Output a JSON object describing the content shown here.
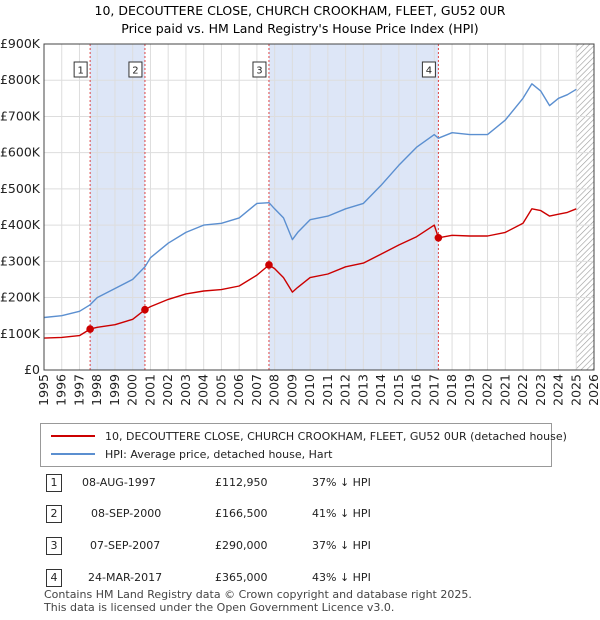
{
  "chart_data": {
    "type": "line",
    "title": "10, DECOUTTERE CLOSE, CHURCH CROOKHAM, FLEET, GU52 0UR",
    "subtitle": "Price paid vs. HM Land Registry's House Price Index (HPI)",
    "xlabel": "",
    "ylabel": "",
    "xlim": [
      1995,
      2026
    ],
    "ylim": [
      0,
      900000
    ],
    "yticks": [
      {
        "value": 0,
        "label": "£0"
      },
      {
        "value": 100000,
        "label": "£100K"
      },
      {
        "value": 200000,
        "label": "£200K"
      },
      {
        "value": 300000,
        "label": "£300K"
      },
      {
        "value": 400000,
        "label": "£400K"
      },
      {
        "value": 500000,
        "label": "£500K"
      },
      {
        "value": 600000,
        "label": "£600K"
      },
      {
        "value": 700000,
        "label": "£700K"
      },
      {
        "value": 800000,
        "label": "£800K"
      },
      {
        "value": 900000,
        "label": "£900K"
      }
    ],
    "xticks": [
      "1995",
      "1996",
      "1997",
      "1998",
      "1999",
      "2000",
      "2001",
      "2002",
      "2003",
      "2004",
      "2005",
      "2006",
      "2007",
      "2008",
      "2009",
      "2010",
      "2011",
      "2012",
      "2013",
      "2014",
      "2015",
      "2016",
      "2017",
      "2018",
      "2019",
      "2020",
      "2021",
      "2022",
      "2023",
      "2024",
      "2025",
      "2026"
    ],
    "shaded_periods": [
      [
        1997.6,
        2000.69
      ],
      [
        2007.68,
        2017.23
      ]
    ],
    "hatched_from": 2025.0,
    "series": [
      {
        "name": "10, DECOUTTERE CLOSE, CHURCH CROOKHAM, FLEET, GU52 0UR (detached house)",
        "color": "#cc0000",
        "x": [
          1995.0,
          1996.0,
          1997.0,
          1997.6,
          1998.0,
          1999.0,
          2000.0,
          2000.69,
          2001.0,
          2002.0,
          2003.0,
          2004.0,
          2005.0,
          2006.0,
          2007.0,
          2007.68,
          2008.0,
          2008.5,
          2009.0,
          2009.3,
          2010.0,
          2011.0,
          2012.0,
          2013.0,
          2014.0,
          2015.0,
          2016.0,
          2017.0,
          2017.23,
          2018.0,
          2019.0,
          2020.0,
          2021.0,
          2022.0,
          2022.5,
          2023.0,
          2023.5,
          2024.0,
          2024.5,
          2025.0
        ],
        "values": [
          88000,
          90000,
          95000,
          112950,
          118000,
          125000,
          140000,
          166500,
          175000,
          195000,
          210000,
          218000,
          222000,
          232000,
          262000,
          290000,
          280000,
          255000,
          215000,
          228000,
          255000,
          265000,
          285000,
          295000,
          320000,
          345000,
          368000,
          400000,
          365000,
          372000,
          370000,
          370000,
          380000,
          405000,
          445000,
          440000,
          425000,
          430000,
          435000,
          445000
        ]
      },
      {
        "name": "HPI: Average price, detached house, Hart",
        "color": "#5b8fd0",
        "x": [
          1995.0,
          1996.0,
          1997.0,
          1997.6,
          1998.0,
          1999.0,
          2000.0,
          2000.69,
          2001.0,
          2002.0,
          2003.0,
          2004.0,
          2005.0,
          2006.0,
          2007.0,
          2007.68,
          2008.0,
          2008.5,
          2009.0,
          2009.3,
          2010.0,
          2011.0,
          2012.0,
          2013.0,
          2014.0,
          2015.0,
          2016.0,
          2017.0,
          2017.23,
          2018.0,
          2019.0,
          2020.0,
          2021.0,
          2022.0,
          2022.5,
          2023.0,
          2023.5,
          2024.0,
          2024.5,
          2025.0
        ],
        "values": [
          145000,
          150000,
          162000,
          180000,
          200000,
          225000,
          250000,
          285000,
          310000,
          350000,
          380000,
          400000,
          405000,
          420000,
          460000,
          462000,
          445000,
          420000,
          360000,
          380000,
          415000,
          425000,
          445000,
          460000,
          510000,
          565000,
          615000,
          650000,
          640000,
          655000,
          650000,
          650000,
          690000,
          750000,
          790000,
          770000,
          730000,
          750000,
          760000,
          775000
        ]
      }
    ],
    "sale_points": [
      {
        "label": "1",
        "x": 1997.6,
        "value": 112950
      },
      {
        "label": "2",
        "x": 2000.69,
        "value": 166500
      },
      {
        "label": "3",
        "x": 2007.68,
        "value": 290000
      },
      {
        "label": "4",
        "x": 2017.23,
        "value": 365000
      }
    ]
  },
  "legend": {
    "property": "10, DECOUTTERE CLOSE, CHURCH CROOKHAM, FLEET, GU52 0UR (detached house)",
    "hpi": "HPI: Average price, detached house, Hart"
  },
  "transactions": [
    {
      "num": "1",
      "date": "08-AUG-1997",
      "price": "£112,950",
      "diff": "37% ↓ HPI"
    },
    {
      "num": "2",
      "date": "08-SEP-2000",
      "price": "£166,500",
      "diff": "41% ↓ HPI"
    },
    {
      "num": "3",
      "date": "07-SEP-2007",
      "price": "£290,000",
      "diff": "37% ↓ HPI"
    },
    {
      "num": "4",
      "date": "24-MAR-2017",
      "price": "£365,000",
      "diff": "43% ↓ HPI"
    }
  ],
  "footer": {
    "line1": "Contains HM Land Registry data © Crown copyright and database right 2025.",
    "line2": "This data is licensed under the Open Government Licence v3.0."
  },
  "colors": {
    "property": "#cc0000",
    "hpi": "#5b8fd0",
    "shade": "#dde6f7",
    "grid": "#dddddd"
  }
}
